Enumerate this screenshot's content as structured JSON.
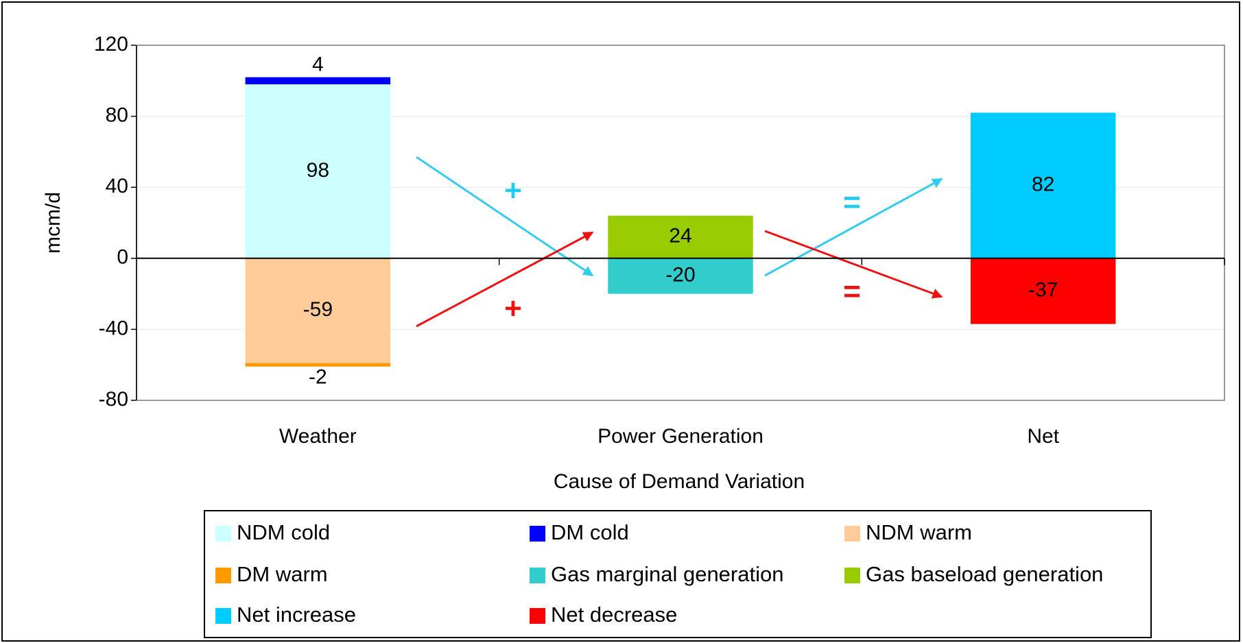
{
  "chart_data": {
    "type": "stacked_bar",
    "x_label": "Cause of Demand Variation",
    "y_label": "mcm/d",
    "categories": [
      "Weather",
      "Power Generation",
      "Net"
    ],
    "series": [
      {
        "name": "NDM cold",
        "color": "#ccffff",
        "values": [
          98,
          null,
          null
        ]
      },
      {
        "name": "DM cold",
        "color": "#0000ff",
        "values": [
          4,
          null,
          null
        ]
      },
      {
        "name": "NDM warm",
        "color": "#ffcc99",
        "values": [
          -59,
          null,
          null
        ]
      },
      {
        "name": "DM warm",
        "color": "#ff9900",
        "values": [
          -2,
          null,
          null
        ]
      },
      {
        "name": "Gas marginal generation",
        "color": "#33cccc",
        "values": [
          null,
          -20,
          null
        ]
      },
      {
        "name": "Gas baseload generation",
        "color": "#99cc00",
        "values": [
          null,
          24,
          null
        ]
      },
      {
        "name": "Net increase",
        "color": "#00ccff",
        "values": [
          null,
          null,
          82
        ]
      },
      {
        "name": "Net decrease",
        "color": "#ff0000",
        "values": [
          null,
          null,
          -37
        ]
      }
    ],
    "annotations": [
      "+",
      "+",
      "=",
      "="
    ],
    "ylim": [
      -80,
      120
    ],
    "yticks": [
      -80,
      -40,
      0,
      40,
      80,
      120
    ],
    "grid": true,
    "legend": "bottom"
  }
}
